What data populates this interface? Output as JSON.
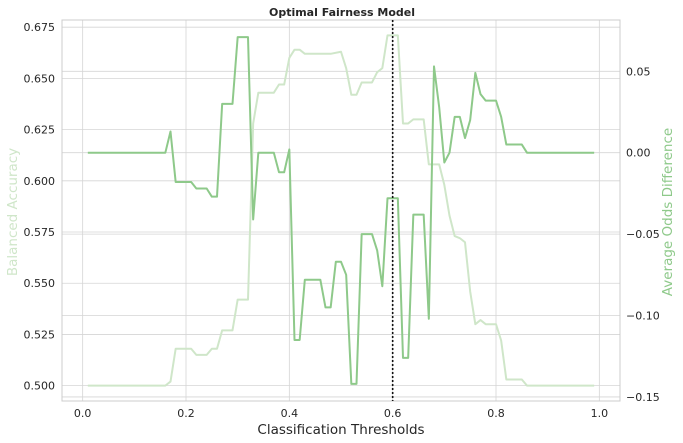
{
  "chart_data": {
    "type": "line",
    "title": "Optimal Fairness Model",
    "xlabel": "Classification Thresholds",
    "ylabel_left": "Balanced Accuracy",
    "ylabel_right": "Average Odds Difference",
    "xlim": [
      -0.04,
      1.04
    ],
    "ylim_left": [
      0.4925,
      0.6785
    ],
    "ylim_right": [
      -0.1525,
      0.0815
    ],
    "x_ticks": [
      0.0,
      0.2,
      0.4,
      0.6,
      0.8,
      1.0
    ],
    "x_tick_labels": [
      "0.0",
      "0.2",
      "0.4",
      "0.6",
      "0.8",
      "1.0"
    ],
    "y_left_ticks": [
      0.5,
      0.525,
      0.55,
      0.575,
      0.6,
      0.625,
      0.65,
      0.675
    ],
    "y_left_tick_labels": [
      "0.500",
      "0.525",
      "0.550",
      "0.575",
      "0.600",
      "0.625",
      "0.650",
      "0.675"
    ],
    "y_right_ticks": [
      -0.15,
      -0.1,
      -0.05,
      0.0,
      0.05
    ],
    "y_right_tick_labels": [
      "−0.15",
      "−0.10",
      "−0.05",
      "0.00",
      "0.05"
    ],
    "grid": true,
    "threshold_line": 0.6,
    "series": [
      {
        "name": "Balanced Accuracy",
        "axis": "left",
        "color": "#cfe6c9",
        "x": [
          0.01,
          0.16,
          0.17,
          0.18,
          0.21,
          0.22,
          0.24,
          0.25,
          0.26,
          0.27,
          0.28,
          0.29,
          0.3,
          0.31,
          0.32,
          0.33,
          0.34,
          0.35,
          0.37,
          0.38,
          0.39,
          0.4,
          0.41,
          0.42,
          0.43,
          0.44,
          0.46,
          0.47,
          0.48,
          0.5,
          0.51,
          0.52,
          0.53,
          0.54,
          0.55,
          0.56,
          0.57,
          0.58,
          0.59,
          0.6,
          0.61,
          0.62,
          0.63,
          0.64,
          0.65,
          0.66,
          0.67,
          0.68,
          0.69,
          0.7,
          0.71,
          0.72,
          0.73,
          0.74,
          0.75,
          0.76,
          0.77,
          0.78,
          0.79,
          0.8,
          0.81,
          0.82,
          0.83,
          0.84,
          0.85,
          0.86,
          0.87,
          0.99
        ],
        "values": [
          0.5,
          0.5,
          0.502,
          0.518,
          0.518,
          0.515,
          0.515,
          0.518,
          0.518,
          0.527,
          0.527,
          0.527,
          0.542,
          0.542,
          0.542,
          0.628,
          0.643,
          0.643,
          0.643,
          0.647,
          0.647,
          0.66,
          0.664,
          0.664,
          0.662,
          0.662,
          0.662,
          0.662,
          0.662,
          0.663,
          0.655,
          0.642,
          0.642,
          0.648,
          0.648,
          0.648,
          0.653,
          0.655,
          0.671,
          0.671,
          0.671,
          0.628,
          0.628,
          0.63,
          0.63,
          0.63,
          0.608,
          0.608,
          0.608,
          0.598,
          0.583,
          0.573,
          0.572,
          0.57,
          0.546,
          0.53,
          0.532,
          0.53,
          0.53,
          0.53,
          0.522,
          0.503,
          0.503,
          0.503,
          0.503,
          0.5,
          0.5,
          0.5
        ]
      },
      {
        "name": "Average Odds Difference",
        "axis": "right",
        "color": "#8ec98a",
        "x": [
          0.01,
          0.16,
          0.17,
          0.18,
          0.21,
          0.22,
          0.24,
          0.25,
          0.26,
          0.27,
          0.28,
          0.29,
          0.3,
          0.31,
          0.32,
          0.33,
          0.34,
          0.35,
          0.37,
          0.38,
          0.39,
          0.4,
          0.41,
          0.42,
          0.43,
          0.44,
          0.46,
          0.47,
          0.48,
          0.49,
          0.5,
          0.51,
          0.52,
          0.53,
          0.54,
          0.55,
          0.56,
          0.57,
          0.58,
          0.59,
          0.6,
          0.61,
          0.62,
          0.63,
          0.64,
          0.65,
          0.66,
          0.67,
          0.68,
          0.69,
          0.7,
          0.71,
          0.72,
          0.73,
          0.74,
          0.75,
          0.76,
          0.77,
          0.78,
          0.79,
          0.8,
          0.81,
          0.82,
          0.83,
          0.84,
          0.85,
          0.86,
          0.87,
          0.99
        ],
        "values": [
          0.0,
          0.0,
          0.013,
          -0.018,
          -0.018,
          -0.022,
          -0.022,
          -0.027,
          -0.027,
          0.03,
          0.03,
          0.03,
          0.071,
          0.071,
          0.071,
          -0.041,
          0.0,
          0.0,
          0.0,
          -0.012,
          -0.012,
          0.002,
          -0.115,
          -0.115,
          -0.078,
          -0.078,
          -0.078,
          -0.095,
          -0.095,
          -0.067,
          -0.067,
          -0.075,
          -0.142,
          -0.142,
          -0.05,
          -0.05,
          -0.05,
          -0.06,
          -0.082,
          -0.028,
          -0.028,
          -0.028,
          -0.126,
          -0.126,
          -0.038,
          -0.038,
          -0.038,
          -0.102,
          0.053,
          0.028,
          -0.006,
          0.0,
          0.022,
          0.022,
          0.009,
          0.02,
          0.049,
          0.036,
          0.032,
          0.032,
          0.032,
          0.022,
          0.005,
          0.005,
          0.005,
          0.005,
          0.0,
          0.0,
          0.0
        ]
      }
    ]
  }
}
